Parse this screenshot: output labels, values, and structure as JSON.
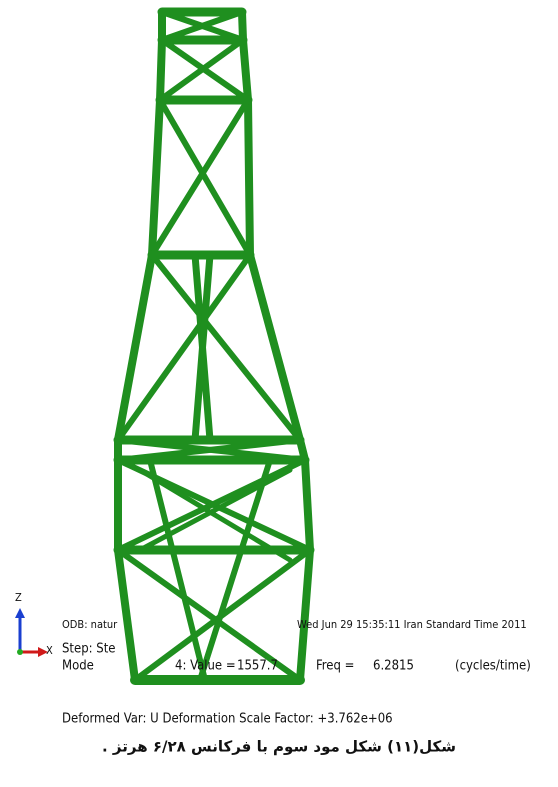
{
  "viewport": {
    "triad": {
      "z_label": "Z",
      "x_label": "X"
    },
    "odb_line": {
      "left": "ODB: natur",
      "right": "Wed Jun 29 15:35:11 Iran Standard Time 2011"
    },
    "step_line": "Step: Ste",
    "mode_line": {
      "mode": "Mode",
      "value_label": "4: Value =",
      "value": "1557.7",
      "freq_label": "Freq =",
      "freq": "6.2815",
      "units": "(cycles/time)"
    },
    "deformed_line": "Deformed Var: U   Deformation Scale Factor: +3.762e+06"
  },
  "caption": "شکل(۱۱) شکل مود سوم با فرکانس ۶/۲۸ هرتز ."
}
